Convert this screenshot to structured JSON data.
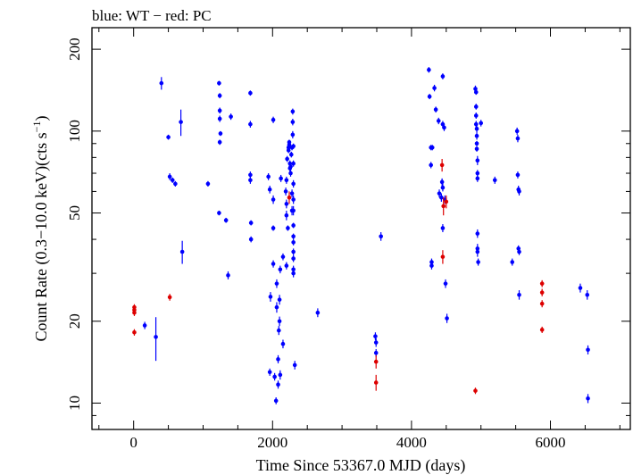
{
  "chart_data": {
    "type": "scatter",
    "title": "blue: WT − red: PC",
    "xlabel": "Time Since 53367.0 MJD (days)",
    "ylabel_main": "Count Rate (0.3−10.0 keV)(cts s",
    "ylabel_sup": "−1",
    "ylabel_tail": ")",
    "x_scale": "linear",
    "y_scale": "log",
    "xlim": [
      -600,
      7150
    ],
    "ylim": [
      8,
      240
    ],
    "x_ticks": [
      0,
      2000,
      4000,
      6000
    ],
    "x_tick_labels": [
      "0",
      "2000",
      "4000",
      "6000"
    ],
    "y_ticks": [
      10,
      20,
      50,
      100,
      200
    ],
    "y_tick_labels": [
      "10",
      "20",
      "50",
      "100",
      "200"
    ],
    "grid": false,
    "series": [
      {
        "name": "WT",
        "color": "#0000ff",
        "points": [
          [
            160,
            19.3,
            0.6
          ],
          [
            320,
            17.5,
            3.2
          ],
          [
            400,
            150,
            8
          ],
          [
            500,
            95,
            2
          ],
          [
            520,
            68,
            2
          ],
          [
            560,
            66,
            1.5
          ],
          [
            600,
            64,
            1.5
          ],
          [
            680,
            108,
            12
          ],
          [
            700,
            36,
            3.5
          ],
          [
            1070,
            64,
            1.5
          ],
          [
            1230,
            50,
            1
          ],
          [
            1230,
            150,
            3
          ],
          [
            1240,
            135,
            3
          ],
          [
            1240,
            119,
            3
          ],
          [
            1240,
            111,
            3
          ],
          [
            1240,
            91,
            2
          ],
          [
            1250,
            98,
            2
          ],
          [
            1330,
            47,
            1
          ],
          [
            1360,
            29.5,
            1
          ],
          [
            1400,
            113,
            3
          ],
          [
            1680,
            138,
            3
          ],
          [
            1680,
            106,
            3
          ],
          [
            1680,
            69,
            2
          ],
          [
            1680,
            66,
            2
          ],
          [
            1690,
            46,
            1
          ],
          [
            1690,
            40,
            1
          ],
          [
            1940,
            68,
            2
          ],
          [
            1960,
            61,
            2
          ],
          [
            1970,
            24.6,
            1
          ],
          [
            1960,
            13,
            0.4
          ],
          [
            2010,
            110,
            3
          ],
          [
            2010,
            56,
            2
          ],
          [
            2010,
            44,
            1
          ],
          [
            2010,
            32.5,
            1
          ],
          [
            2030,
            12.5,
            0.4
          ],
          [
            2050,
            10.2,
            0.3
          ],
          [
            2060,
            27.5,
            1
          ],
          [
            2060,
            22.5,
            1
          ],
          [
            2080,
            14.5,
            0.5
          ],
          [
            2080,
            11.7,
            0.4
          ],
          [
            2090,
            18.5,
            0.7
          ],
          [
            2100,
            20,
            0.8
          ],
          [
            2100,
            24,
            1
          ],
          [
            2110,
            12.7,
            0.5
          ],
          [
            2110,
            31,
            1
          ],
          [
            2120,
            67,
            2
          ],
          [
            2150,
            34.5,
            1
          ],
          [
            2150,
            16.5,
            0.6
          ],
          [
            2190,
            60,
            2
          ],
          [
            2200,
            66,
            2
          ],
          [
            2200,
            54,
            2
          ],
          [
            2200,
            49,
            2
          ],
          [
            2200,
            32,
            1
          ],
          [
            2210,
            79,
            2
          ],
          [
            2220,
            44,
            1
          ],
          [
            2230,
            85,
            2
          ],
          [
            2230,
            87,
            2
          ],
          [
            2240,
            89,
            2
          ],
          [
            2240,
            91,
            2
          ],
          [
            2250,
            76,
            2
          ],
          [
            2250,
            73,
            2
          ],
          [
            2260,
            74,
            2
          ],
          [
            2260,
            70,
            2
          ],
          [
            2270,
            82,
            2
          ],
          [
            2280,
            87,
            2
          ],
          [
            2280,
            59,
            2
          ],
          [
            2280,
            51,
            2
          ],
          [
            2290,
            118,
            3
          ],
          [
            2290,
            108,
            3
          ],
          [
            2290,
            97,
            3
          ],
          [
            2300,
            88,
            2
          ],
          [
            2300,
            76,
            2
          ],
          [
            2300,
            64,
            2
          ],
          [
            2300,
            56,
            2
          ],
          [
            2300,
            51,
            2
          ],
          [
            2300,
            45,
            1
          ],
          [
            2300,
            41,
            1
          ],
          [
            2300,
            39,
            1
          ],
          [
            2300,
            36,
            1
          ],
          [
            2300,
            34,
            1
          ],
          [
            2300,
            31,
            1
          ],
          [
            2300,
            30,
            1
          ],
          [
            2320,
            13.8,
            0.5
          ],
          [
            2650,
            21.5,
            0.8
          ],
          [
            3480,
            17.6,
            0.6
          ],
          [
            3490,
            16.7,
            0.6
          ],
          [
            3490,
            15.3,
            0.5
          ],
          [
            3560,
            41,
            1.5
          ],
          [
            4250,
            168,
            4
          ],
          [
            4260,
            134,
            3
          ],
          [
            4280,
            87,
            2
          ],
          [
            4280,
            75,
            2
          ],
          [
            4290,
            33,
            1
          ],
          [
            4290,
            32,
            1
          ],
          [
            4300,
            87,
            2
          ],
          [
            4330,
            144,
            4
          ],
          [
            4350,
            120,
            3
          ],
          [
            4390,
            109,
            3
          ],
          [
            4400,
            59,
            2
          ],
          [
            4430,
            57,
            2
          ],
          [
            4440,
            65,
            2
          ],
          [
            4450,
            62,
            2
          ],
          [
            4450,
            44,
            1.5
          ],
          [
            4450,
            159,
            4
          ],
          [
            4450,
            106,
            3
          ],
          [
            4470,
            103,
            3
          ],
          [
            4480,
            56,
            2
          ],
          [
            4490,
            27.5,
            1
          ],
          [
            4510,
            20.5,
            0.8
          ],
          [
            4920,
            143,
            4
          ],
          [
            4930,
            139,
            3
          ],
          [
            4930,
            123,
            3
          ],
          [
            4930,
            114,
            3
          ],
          [
            4930,
            106,
            3
          ],
          [
            4940,
            102,
            3
          ],
          [
            4940,
            96,
            3
          ],
          [
            4940,
            90,
            2
          ],
          [
            4940,
            86,
            2
          ],
          [
            4950,
            78,
            3
          ],
          [
            4950,
            70,
            2
          ],
          [
            4950,
            67,
            2
          ],
          [
            4950,
            42,
            1.5
          ],
          [
            4950,
            37,
            1.5
          ],
          [
            4950,
            36,
            1.5
          ],
          [
            4960,
            33,
            1
          ],
          [
            5000,
            107,
            3
          ],
          [
            5200,
            66,
            2
          ],
          [
            5450,
            33,
            1
          ],
          [
            5520,
            100,
            3
          ],
          [
            5530,
            94,
            3
          ],
          [
            5530,
            69,
            2
          ],
          [
            5540,
            61,
            2
          ],
          [
            5540,
            37,
            1
          ],
          [
            5550,
            36,
            1
          ],
          [
            5550,
            60,
            2
          ],
          [
            5550,
            25,
            1
          ],
          [
            6430,
            26.5,
            1
          ],
          [
            6530,
            25,
            1
          ],
          [
            6540,
            15.7,
            0.6
          ],
          [
            6540,
            10.4,
            0.4
          ]
        ]
      },
      {
        "name": "PC",
        "color": "#dd0000",
        "points": [
          [
            10,
            22.5,
            0.6
          ],
          [
            10,
            22,
            0.6
          ],
          [
            10,
            21.5,
            0.6
          ],
          [
            10,
            18.2,
            0.5
          ],
          [
            520,
            24.5,
            0.7
          ],
          [
            2240,
            57,
            3
          ],
          [
            3490,
            14.2,
            0.8
          ],
          [
            3490,
            11.9,
            0.8
          ],
          [
            4440,
            75,
            4
          ],
          [
            4450,
            34.5,
            2
          ],
          [
            4460,
            53,
            4
          ],
          [
            4500,
            55,
            3
          ],
          [
            4920,
            11.1,
            0.3
          ],
          [
            5880,
            27.5,
            0.8
          ],
          [
            5880,
            25.5,
            0.8
          ],
          [
            5880,
            23.2,
            0.7
          ],
          [
            5880,
            18.6,
            0.5
          ]
        ]
      }
    ]
  }
}
